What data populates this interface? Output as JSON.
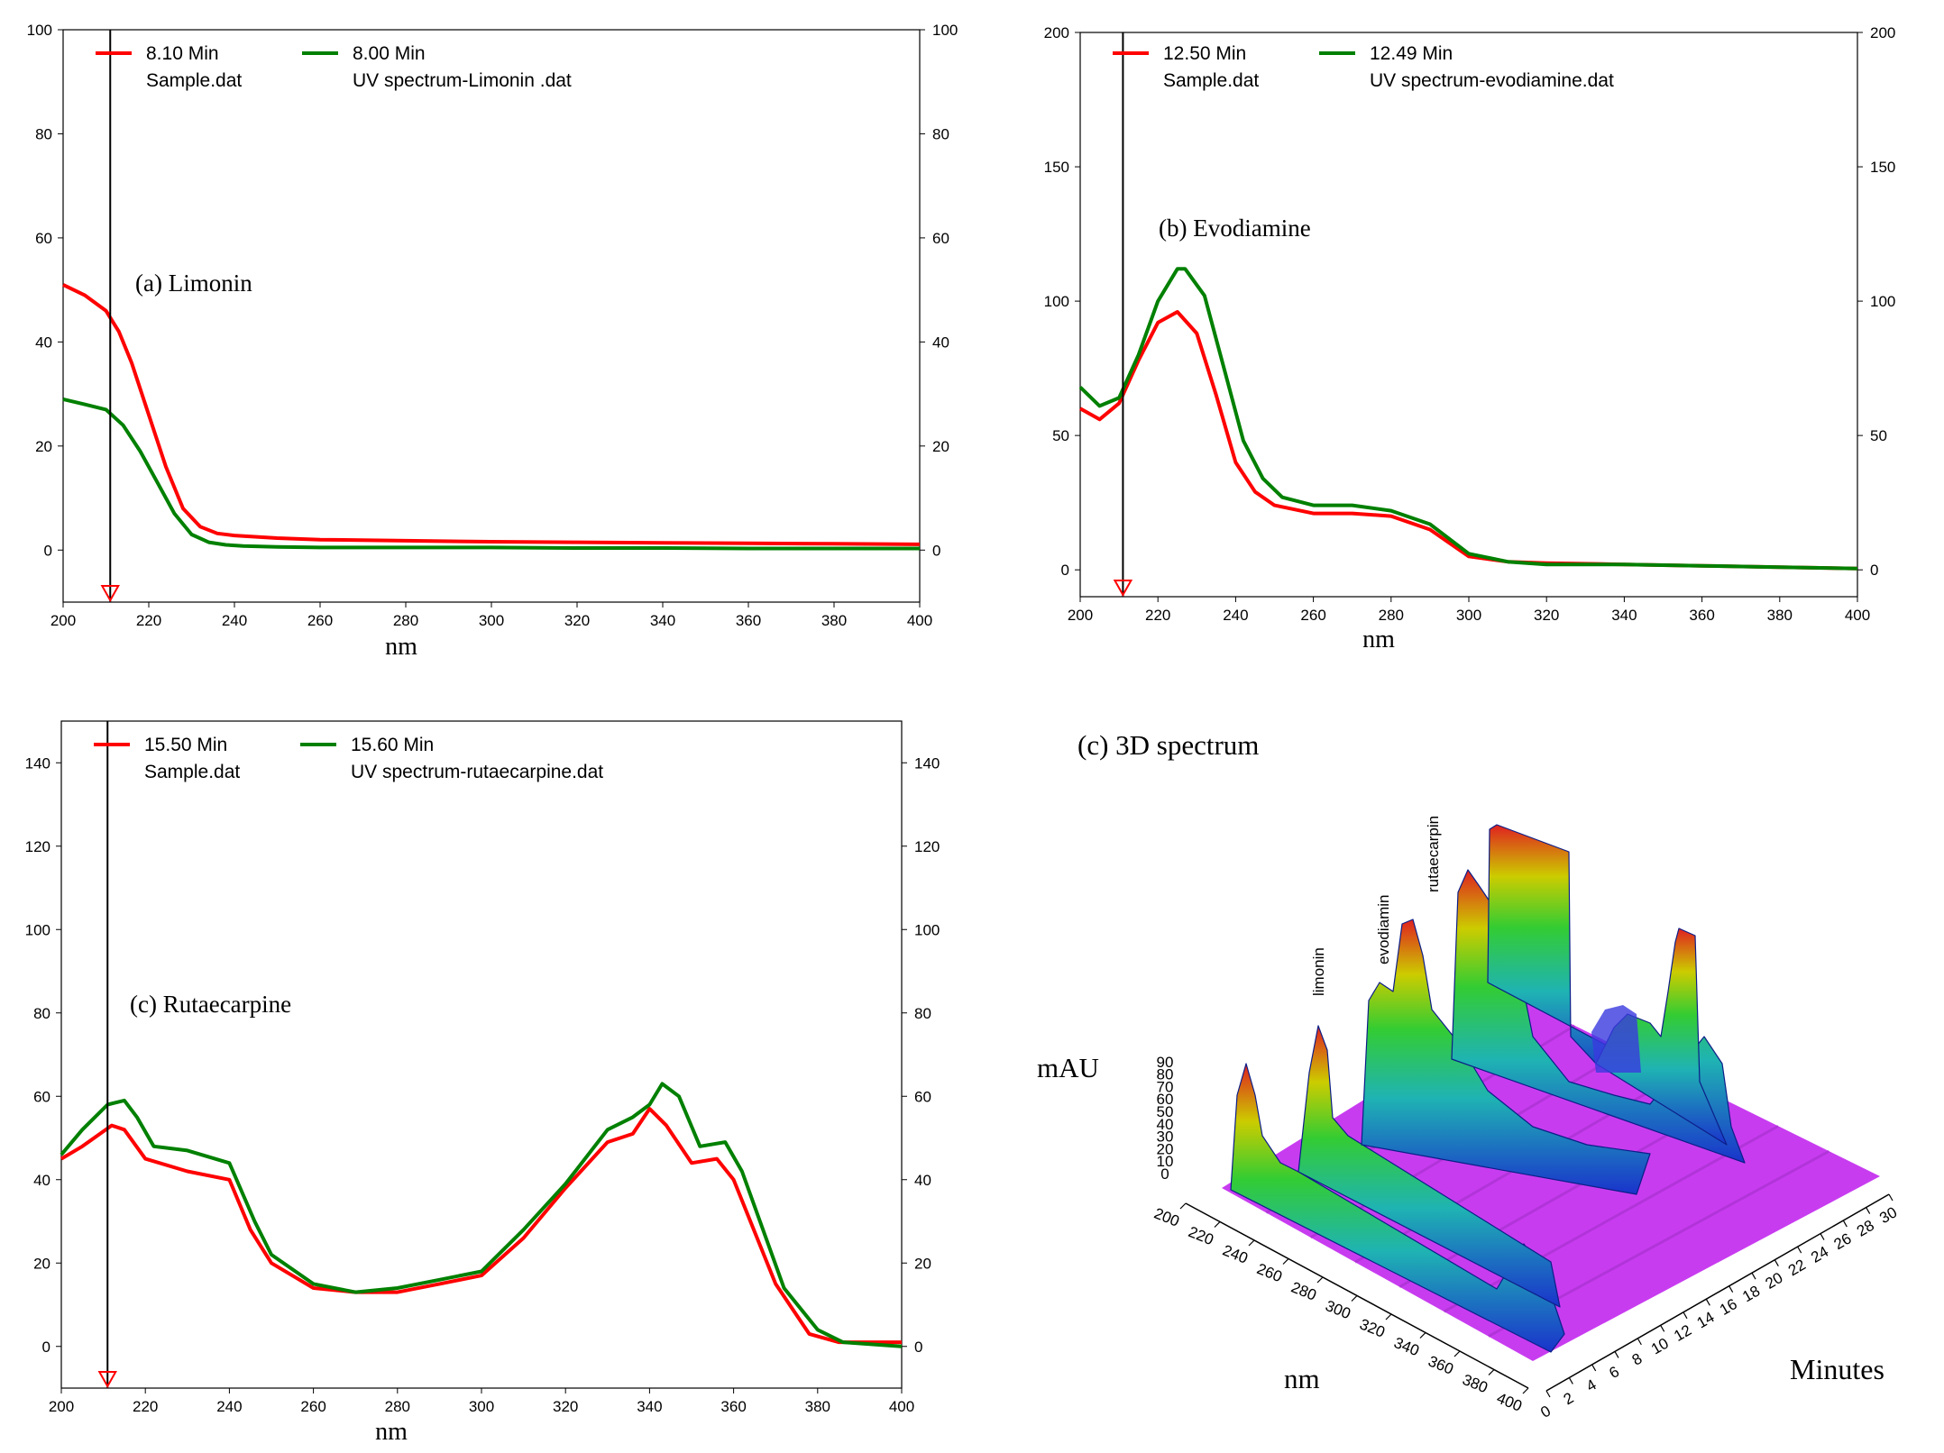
{
  "colors": {
    "sample": "#ff0000",
    "reference": "#008000",
    "cursor": "#000000"
  },
  "chart_data": [
    {
      "type": "line",
      "annotation": "(a) Limonin",
      "xlabel": "nm",
      "xlim": [
        200,
        400
      ],
      "ylim": [
        -10,
        100
      ],
      "xticks": [
        200,
        220,
        240,
        260,
        280,
        300,
        320,
        340,
        360,
        380,
        400
      ],
      "yticks": [
        0,
        20,
        40,
        60,
        80,
        100
      ],
      "y2ticks": [
        0,
        20,
        40,
        60,
        80,
        100
      ],
      "cursor_x": 211,
      "series": [
        {
          "name": "Sample.dat",
          "time": "8.10 Min",
          "color": "#ff0000",
          "x": [
            200,
            205,
            210,
            213,
            216,
            220,
            224,
            228,
            232,
            236,
            240,
            250,
            260,
            280,
            300,
            320,
            340,
            360,
            380,
            400
          ],
          "y": [
            51,
            49,
            46,
            42,
            36,
            26,
            16,
            8,
            4.5,
            3.2,
            2.8,
            2.3,
            2,
            1.8,
            1.6,
            1.5,
            1.4,
            1.3,
            1.2,
            1.1
          ]
        },
        {
          "name": "UV spectrum-Limonin .dat",
          "time": "8.00 Min",
          "color": "#008000",
          "x": [
            200,
            205,
            210,
            214,
            218,
            222,
            226,
            230,
            234,
            238,
            242,
            250,
            260,
            280,
            300,
            320,
            340,
            360,
            380,
            400
          ],
          "y": [
            29,
            28,
            27,
            24,
            19,
            13,
            7,
            3,
            1.5,
            1,
            0.8,
            0.6,
            0.5,
            0.5,
            0.5,
            0.4,
            0.4,
            0.3,
            0.3,
            0.3
          ]
        }
      ]
    },
    {
      "type": "line",
      "annotation": "(b) Evodiamine",
      "xlabel": "nm",
      "xlim": [
        200,
        400
      ],
      "ylim": [
        -10,
        200
      ],
      "xticks": [
        200,
        220,
        240,
        260,
        280,
        300,
        320,
        340,
        360,
        380,
        400
      ],
      "yticks": [
        0,
        50,
        100,
        150,
        200
      ],
      "y2ticks": [
        0,
        50,
        100,
        150,
        200
      ],
      "cursor_x": 211,
      "series": [
        {
          "name": "Sample.dat",
          "time": "12.50 Min",
          "color": "#ff0000",
          "x": [
            200,
            205,
            210,
            215,
            220,
            225,
            230,
            235,
            240,
            245,
            250,
            260,
            270,
            280,
            290,
            300,
            310,
            320,
            340,
            360,
            380,
            400
          ],
          "y": [
            60,
            56,
            62,
            78,
            92,
            96,
            88,
            65,
            40,
            29,
            24,
            21,
            21,
            20,
            15,
            5,
            3,
            2.5,
            2,
            1.5,
            1,
            0.5
          ]
        },
        {
          "name": "UV spectrum-evodiamine.dat",
          "time": "12.49 Min",
          "color": "#008000",
          "x": [
            200,
            205,
            210,
            215,
            220,
            225,
            227,
            232,
            237,
            242,
            247,
            252,
            260,
            270,
            280,
            290,
            300,
            310,
            320,
            340,
            360,
            380,
            400
          ],
          "y": [
            68,
            61,
            64,
            80,
            100,
            112,
            112,
            102,
            75,
            48,
            34,
            27,
            24,
            24,
            22,
            17,
            6,
            3,
            2,
            2,
            1.5,
            1,
            0.5
          ]
        }
      ]
    },
    {
      "type": "line",
      "annotation": "(c) Rutaecarpine",
      "xlabel": "nm",
      "xlim": [
        200,
        400
      ],
      "ylim": [
        -10,
        150
      ],
      "xticks": [
        200,
        220,
        240,
        260,
        280,
        300,
        320,
        340,
        360,
        380,
        400
      ],
      "yticks": [
        0,
        20,
        40,
        60,
        80,
        100,
        120,
        140
      ],
      "y2ticks": [
        0,
        20,
        40,
        60,
        80,
        100,
        120,
        140
      ],
      "cursor_x": 211,
      "series": [
        {
          "name": "Sample.dat",
          "time": "15.50 Min",
          "color": "#ff0000",
          "x": [
            200,
            205,
            212,
            215,
            220,
            230,
            240,
            245,
            250,
            260,
            270,
            280,
            290,
            300,
            310,
            320,
            330,
            336,
            340,
            344,
            350,
            356,
            360,
            370,
            378,
            385,
            400
          ],
          "y": [
            45,
            48,
            53,
            52,
            45,
            42,
            40,
            28,
            20,
            14,
            13,
            13,
            15,
            17,
            26,
            38,
            49,
            51,
            57,
            53,
            44,
            45,
            40,
            15,
            3,
            1,
            1
          ]
        },
        {
          "name": "UV spectrum-rutaecarpine.dat",
          "time": "15.60 Min",
          "color": "#008000",
          "x": [
            200,
            205,
            211,
            215,
            218,
            222,
            230,
            240,
            246,
            250,
            260,
            270,
            280,
            290,
            300,
            310,
            320,
            330,
            336,
            340,
            343,
            347,
            352,
            358,
            362,
            372,
            380,
            386,
            400
          ],
          "y": [
            46,
            52,
            58,
            59,
            55,
            48,
            47,
            44,
            30,
            22,
            15,
            13,
            14,
            16,
            18,
            28,
            39,
            52,
            55,
            58,
            63,
            60,
            48,
            49,
            42,
            14,
            4,
            1,
            0
          ]
        }
      ]
    },
    {
      "type": "surface3d",
      "annotation": "(c) 3D spectrum",
      "zlabel": "mAU",
      "xlabel": "nm",
      "ylabel": "Minutes",
      "zticks": [
        0,
        10,
        20,
        30,
        40,
        50,
        60,
        70,
        80,
        90
      ],
      "xticks": [
        200,
        220,
        240,
        260,
        280,
        300,
        320,
        340,
        360,
        380,
        400
      ],
      "yticks": [
        0,
        2,
        4,
        6,
        8,
        10,
        12,
        14,
        16,
        18,
        20,
        22,
        24,
        26,
        28,
        30
      ],
      "peak_labels": [
        "limonin",
        "evodiamin",
        "rutaecarpin"
      ]
    }
  ]
}
